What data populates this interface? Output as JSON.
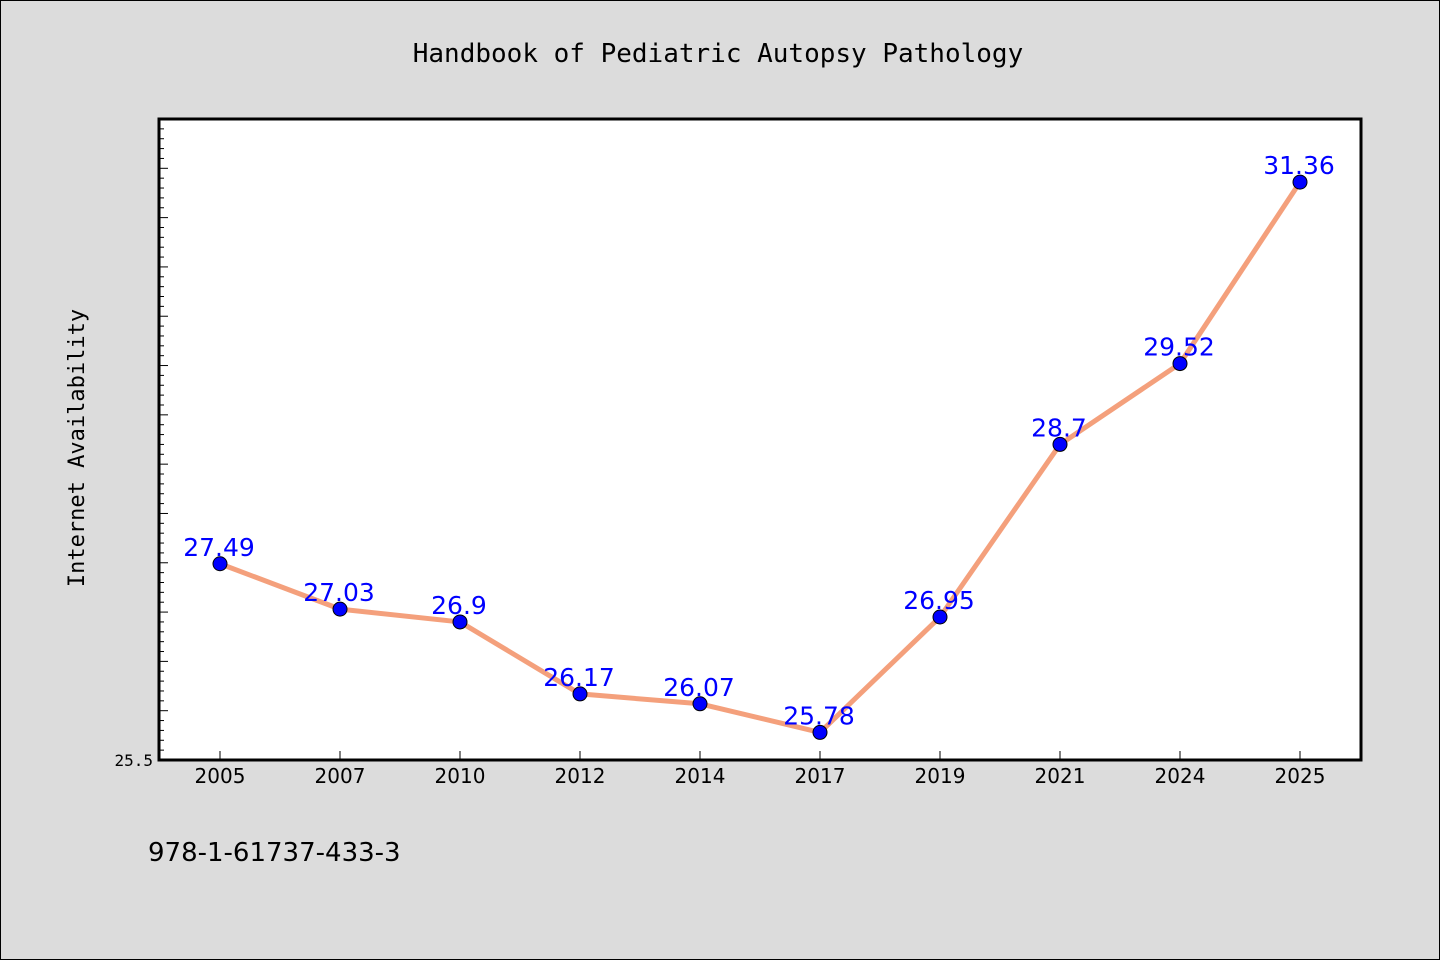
{
  "chart_data": {
    "type": "line",
    "title": "Handbook of Pediatric Autopsy Pathology",
    "xlabel": "",
    "ylabel": "Internet Availability",
    "categories": [
      "2005",
      "2007",
      "2010",
      "2012",
      "2014",
      "2017",
      "2019",
      "2021",
      "2024",
      "2025"
    ],
    "series": [
      {
        "values": [
          27.49,
          27.03,
          26.9,
          26.17,
          26.07,
          25.78,
          26.95,
          28.7,
          29.52,
          31.36
        ],
        "line_color": "#f4a07c",
        "marker_color": "#0000ff"
      }
    ],
    "data_labels": [
      "27.49",
      "27.03",
      "26.9",
      "26.17",
      "26.07",
      "25.78",
      "26.95",
      "28.7",
      "29.52",
      "31.36"
    ],
    "ylim": [
      25.5,
      32.0
    ],
    "ytick_labels": [
      "25.5"
    ],
    "grid": false,
    "legend": "none",
    "label_color": "#0000ff"
  },
  "footer": {
    "text": "978-1-61737-433-3"
  }
}
